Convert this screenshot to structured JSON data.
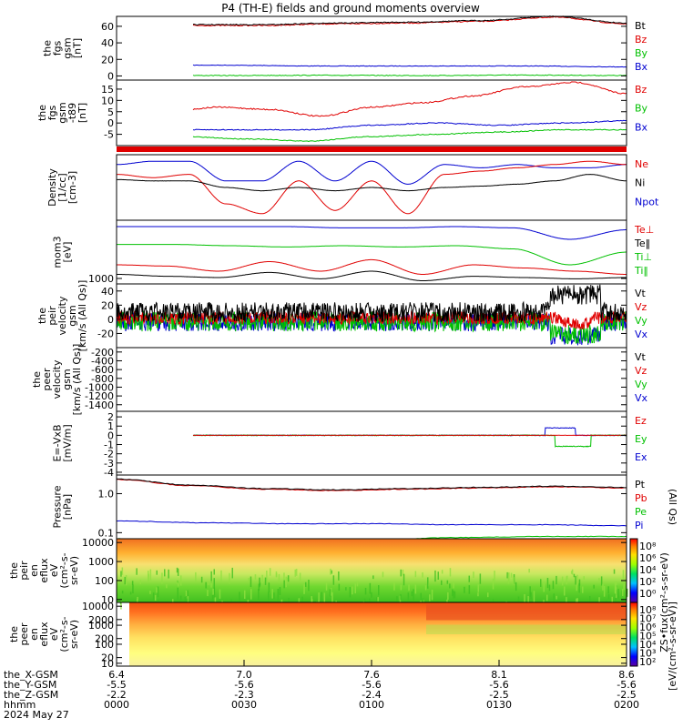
{
  "title": "P4 (TH-E) fields and ground moments overview",
  "colors": {
    "black": "#000000",
    "red": "#e00000",
    "green": "#00c000",
    "blue": "#0000d0"
  },
  "panels": [
    {
      "id": "p1",
      "ylabel": [
        "the",
        "fgs",
        "gsm",
        "[nT]"
      ],
      "ticks": [
        {
          "v": 0,
          "t": "0"
        },
        {
          "v": 20,
          "t": "20"
        },
        {
          "v": 40,
          "t": "40"
        },
        {
          "v": 60,
          "t": "60"
        }
      ],
      "ylim": [
        -5,
        72
      ],
      "legend": [
        {
          "t": "Bt",
          "c": "black"
        },
        {
          "t": "Bz",
          "c": "red"
        },
        {
          "t": "By",
          "c": "green"
        },
        {
          "t": "Bx",
          "c": "blue"
        }
      ]
    },
    {
      "id": "p2",
      "ylabel": [
        "the",
        "fgs",
        "gsm",
        "-t89",
        "[nT]"
      ],
      "ticks": [
        {
          "v": -5,
          "t": "-5"
        },
        {
          "v": 0,
          "t": "0"
        },
        {
          "v": 5,
          "t": "5"
        },
        {
          "v": 10,
          "t": "10"
        },
        {
          "v": 15,
          "t": "15"
        }
      ],
      "ylim": [
        -10,
        19
      ],
      "legend": [
        {
          "t": "Bz",
          "c": "red"
        },
        {
          "t": "By",
          "c": "green"
        },
        {
          "t": "Bx",
          "c": "blue"
        }
      ]
    },
    {
      "id": "p3",
      "ylabel": [
        "Density",
        "[1/cc]",
        "[cm-3]"
      ],
      "ticks": [],
      "legend": [
        {
          "t": "Ne",
          "c": "red"
        },
        {
          "t": "Ni",
          "c": "black"
        },
        {
          "t": "Npot",
          "c": "blue"
        }
      ]
    },
    {
      "id": "p4",
      "ylabel": [
        "mom3",
        "[eV]"
      ],
      "ticks": [
        {
          "v": 0,
          "t": "1000"
        }
      ],
      "legend": [
        {
          "t": "Te⊥",
          "c": "red"
        },
        {
          "t": "Te‖",
          "c": "black"
        },
        {
          "t": "Ti⊥",
          "c": "green"
        },
        {
          "t": "Ti‖",
          "c": "green"
        }
      ]
    },
    {
      "id": "p5",
      "ylabel": [
        "the",
        "peir",
        "velocity",
        "gsm",
        "[km/s (All Qs)]"
      ],
      "ticks": [
        {
          "v": -20,
          "t": "-20"
        },
        {
          "v": 0,
          "t": "0"
        },
        {
          "v": 20,
          "t": "20"
        },
        {
          "v": 40,
          "t": "40"
        }
      ],
      "ylim": [
        -40,
        50
      ],
      "legend": [
        {
          "t": "Vt",
          "c": "black"
        },
        {
          "t": "Vz",
          "c": "red"
        },
        {
          "t": "Vy",
          "c": "green"
        },
        {
          "t": "Vx",
          "c": "blue"
        }
      ]
    },
    {
      "id": "p6",
      "ylabel": [
        "the",
        "peer",
        "velocity",
        "gsm",
        "[km/s (All Qs)]"
      ],
      "ticks": [
        {
          "v": -1400,
          "t": "-1400"
        },
        {
          "v": -1200,
          "t": "-1200"
        },
        {
          "v": -1000,
          "t": "-1000"
        },
        {
          "v": -800,
          "t": "-800"
        },
        {
          "v": -600,
          "t": "-600"
        },
        {
          "v": -400,
          "t": "-400"
        },
        {
          "v": -200,
          "t": "-200"
        }
      ],
      "ylim": [
        -1550,
        -100
      ],
      "legend": [
        {
          "t": "Vt",
          "c": "black"
        },
        {
          "t": "Vz",
          "c": "red"
        },
        {
          "t": "Vy",
          "c": "green"
        },
        {
          "t": "Vx",
          "c": "blue"
        }
      ]
    },
    {
      "id": "p7",
      "ylabel": [
        "E=-VxB",
        "[mV/m]"
      ],
      "ticks": [
        {
          "v": -4,
          "t": "-4"
        },
        {
          "v": -3,
          "t": "-3"
        },
        {
          "v": -2,
          "t": "-2"
        },
        {
          "v": -1,
          "t": "-1"
        },
        {
          "v": 0,
          "t": "0"
        },
        {
          "v": 1,
          "t": "1"
        },
        {
          "v": 2,
          "t": "2"
        }
      ],
      "ylim": [
        -4.3,
        2.6
      ],
      "legend": [
        {
          "t": "Ez",
          "c": "red"
        },
        {
          "t": "Ey",
          "c": "green"
        },
        {
          "t": "Ex",
          "c": "blue"
        }
      ]
    },
    {
      "id": "p8",
      "ylabel": [
        "Pressure",
        "[nPa]"
      ],
      "ticks": [
        {
          "v": 0.1,
          "t": "0.1"
        },
        {
          "v": 1.0,
          "t": "1.0"
        }
      ],
      "legend": [
        {
          "t": "Pt",
          "c": "black"
        },
        {
          "t": "Pb",
          "c": "red"
        },
        {
          "t": "Pe",
          "c": "green"
        },
        {
          "t": "Pi",
          "c": "blue"
        }
      ],
      "right_label": "(All Qs)"
    },
    {
      "id": "p9",
      "ylabel": [
        "the",
        "peir",
        "en",
        "eflux",
        "eV",
        "(cm²-s-",
        "sr-eV)"
      ],
      "ticks": [
        {
          "v": 1,
          "t": "10"
        },
        {
          "v": 2,
          "t": "100"
        },
        {
          "v": 3,
          "t": "1000"
        },
        {
          "v": 4,
          "t": "10000"
        }
      ]
    },
    {
      "id": "p10",
      "ylabel": [
        "the",
        "peer",
        "en",
        "eflux",
        "eV",
        "(cm²-s-",
        "sr-eV)"
      ],
      "ticks": [
        {
          "v": 1,
          "t": "10"
        },
        {
          "v": 1.3,
          "t": "20"
        },
        {
          "v": 2,
          "t": "100"
        },
        {
          "v": 2.3,
          "t": "200"
        },
        {
          "v": 3,
          "t": "1000"
        },
        {
          "v": 3.3,
          "t": "2000"
        },
        {
          "v": 4,
          "t": "10000"
        }
      ]
    }
  ],
  "colorbar": {
    "label": "[eV/(cm²-s-sr-eV)]",
    "overlay": "ZS•fux(cm²-s-sr-eV)",
    "ticks": [
      "10⁸",
      "10⁶",
      "10⁴",
      "10²",
      "10⁰"
    ],
    "ticks2": [
      "10⁸",
      "10⁷",
      "10⁶",
      "10⁵",
      "10⁴",
      "10³",
      "10²"
    ]
  },
  "xaxis": {
    "rows": [
      {
        "label": "the_X-GSM",
        "values": [
          "6.4",
          "7.0",
          "7.6",
          "8.1",
          "8.6"
        ]
      },
      {
        "label": "the_Y-GSM",
        "values": [
          "-5.5",
          "-5.6",
          "-5.6",
          "-5.6",
          "-5.6"
        ]
      },
      {
        "label": "the_Z-GSM",
        "values": [
          "-2.2",
          "-2.3",
          "-2.4",
          "-2.5",
          "-2.5"
        ]
      },
      {
        "label": "hhmm",
        "values": [
          "0000",
          "0030",
          "0100",
          "0130",
          "0200"
        ]
      }
    ],
    "date": "2024 May 27"
  },
  "chart_data": [
    {
      "type": "line",
      "title": "P4 (TH-E) fields and ground moments overview",
      "ylabel": "the fgs gsm [nT]",
      "series": [
        {
          "name": "Bt",
          "approx": [
            62,
            61,
            60,
            62,
            63,
            66,
            70,
            64
          ]
        },
        {
          "name": "Bz",
          "approx": [
            61,
            60,
            59,
            61,
            62,
            65,
            69,
            63
          ]
        },
        {
          "name": "By",
          "approx": [
            0,
            0,
            0,
            0,
            0,
            0,
            0,
            0
          ]
        },
        {
          "name": "Bx",
          "approx": [
            13,
            13,
            13,
            12,
            12,
            12,
            11,
            11
          ]
        }
      ]
    },
    {
      "type": "line",
      "ylabel": "the fgs gsm -t89 [nT]",
      "series": [
        {
          "name": "Bz",
          "approx": [
            3,
            5,
            7,
            3,
            8,
            12,
            16,
            14
          ]
        },
        {
          "name": "By",
          "approx": [
            -7,
            -6,
            -6,
            -8,
            -5,
            -4,
            -3,
            -3
          ]
        },
        {
          "name": "Bx",
          "approx": [
            -4,
            -3,
            -3,
            -3,
            0,
            -1,
            0,
            1
          ]
        }
      ]
    },
    {
      "type": "line",
      "ylabel": "Density [1/cc] [cm-3]",
      "series": [
        {
          "name": "Ne"
        },
        {
          "name": "Ni"
        },
        {
          "name": "Npot"
        }
      ]
    },
    {
      "type": "line",
      "ylabel": "mom3 [eV]",
      "series": [
        {
          "name": "Te⊥"
        },
        {
          "name": "Te‖"
        },
        {
          "name": "Ti⊥"
        },
        {
          "name": "Ti‖"
        }
      ]
    },
    {
      "type": "line",
      "ylabel": "the peir velocity gsm [km/s (All Qs)]",
      "ylim": [
        -40,
        50
      ],
      "series": [
        {
          "name": "Vt"
        },
        {
          "name": "Vz"
        },
        {
          "name": "Vy"
        },
        {
          "name": "Vx"
        }
      ]
    },
    {
      "type": "line",
      "ylabel": "the peer velocity gsm [km/s (All Qs)]",
      "ylim": [
        -1500,
        -200
      ],
      "series": []
    },
    {
      "type": "line",
      "ylabel": "E=-VxB [mV/m]",
      "ylim": [
        -4,
        2
      ],
      "series": [
        {
          "name": "Ez"
        },
        {
          "name": "Ey"
        },
        {
          "name": "Ex"
        }
      ]
    },
    {
      "type": "line",
      "ylabel": "Pressure [nPa]",
      "series": [
        {
          "name": "Pt"
        },
        {
          "name": "Pb"
        },
        {
          "name": "Pe"
        },
        {
          "name": "Pi"
        }
      ]
    },
    {
      "type": "heatmap",
      "ylabel": "the peir en eflux eV (cm²-s-sr-eV)"
    },
    {
      "type": "heatmap",
      "ylabel": "the peer en eflux eV (cm²-s-sr-eV)"
    }
  ]
}
